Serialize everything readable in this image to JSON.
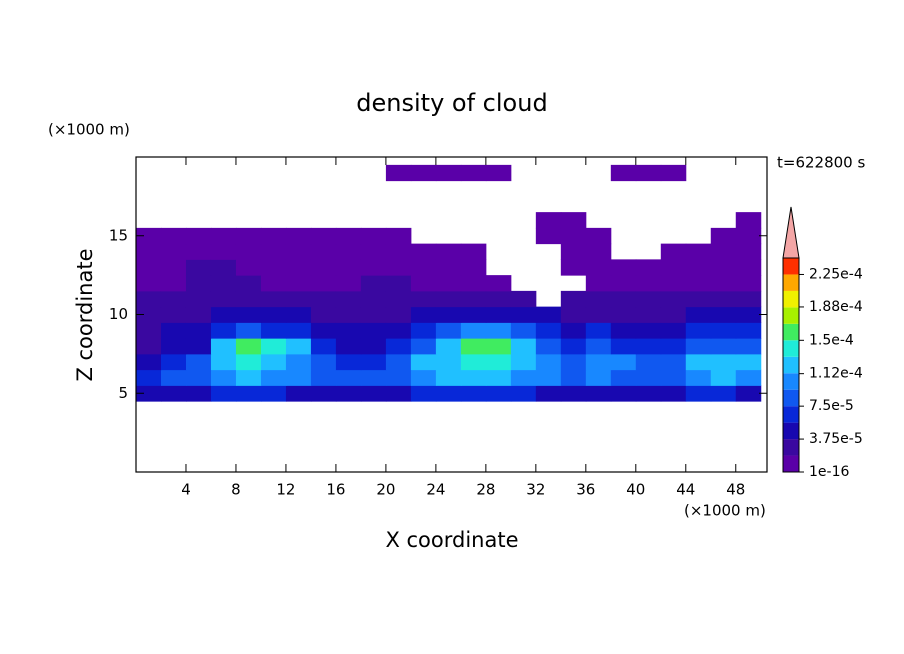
{
  "chart_data": {
    "type": "contour",
    "title": "density of cloud",
    "x_label": "X coordinate",
    "y_label": "Z coordinate",
    "x_unit": "(×1000 m)",
    "y_unit": "(×1000 m)",
    "time_label": "t=622800 s",
    "xlim": [
      0,
      50.5
    ],
    "ylim": [
      0,
      20
    ],
    "xticks": [
      4,
      8,
      12,
      16,
      20,
      24,
      28,
      32,
      36,
      40,
      44,
      48
    ],
    "yticks": [
      5,
      10,
      15
    ],
    "x": [
      1,
      3,
      5,
      7,
      9,
      11,
      13,
      15,
      17,
      19,
      21,
      23,
      25,
      27,
      29,
      31,
      33,
      35,
      37,
      39,
      41,
      43,
      45,
      47,
      49
    ],
    "y": [
      5,
      6,
      7,
      8,
      9,
      10,
      11,
      12,
      13,
      14,
      15,
      16,
      17,
      18,
      19
    ],
    "z": [
      [
        4e-05,
        5e-05,
        5e-05,
        6e-05,
        6e-05,
        6e-05,
        5e-05,
        5e-05,
        5e-05,
        5e-05,
        5e-05,
        6e-05,
        6e-05,
        6e-05,
        6e-05,
        6e-05,
        5e-05,
        5e-05,
        5e-05,
        5e-05,
        5e-05,
        5e-05,
        6e-05,
        6e-05,
        5e-05
      ],
      [
        7e-05,
        8e-05,
        9e-05,
        0.00011,
        0.000115,
        0.00011,
        0.0001,
        9e-05,
        8e-05,
        8e-05,
        9e-05,
        0.00011,
        0.000115,
        0.00012,
        0.000115,
        0.00011,
        0.0001,
        9e-05,
        0.0001,
        9e-05,
        8e-05,
        9e-05,
        0.00011,
        0.000115,
        0.00011
      ],
      [
        5e-05,
        6e-05,
        8e-05,
        0.00013,
        0.000135,
        0.00013,
        0.00011,
        9e-05,
        7e-05,
        7e-05,
        8e-05,
        0.00012,
        0.00013,
        0.00014,
        0.00014,
        0.00013,
        0.0001,
        9e-05,
        0.00011,
        0.0001,
        8e-05,
        9e-05,
        0.00012,
        0.00013,
        0.00012
      ],
      [
        3e-05,
        4e-05,
        5e-05,
        0.00012,
        0.000155,
        0.00015,
        0.00012,
        7e-05,
        5e-05,
        5e-05,
        6e-05,
        9e-05,
        0.00012,
        0.000155,
        0.00016,
        0.00013,
        8e-05,
        6e-05,
        8e-05,
        7e-05,
        6e-05,
        6e-05,
        8e-05,
        9e-05,
        8e-05
      ],
      [
        3e-05,
        4e-05,
        4e-05,
        6e-05,
        8e-05,
        7e-05,
        6e-05,
        5e-05,
        4e-05,
        4e-05,
        5e-05,
        6e-05,
        8e-05,
        0.0001,
        0.00011,
        8e-05,
        6e-05,
        5e-05,
        6e-05,
        5e-05,
        4e-05,
        5e-05,
        6e-05,
        6e-05,
        6e-05
      ],
      [
        2.5e-05,
        3e-05,
        3e-05,
        4e-05,
        4e-05,
        4e-05,
        4e-05,
        3e-05,
        3e-05,
        3e-05,
        3e-05,
        4e-05,
        5e-05,
        5e-05,
        5e-05,
        4e-05,
        4e-05,
        3e-05,
        3e-05,
        3e-05,
        3e-05,
        3e-05,
        4e-05,
        4e-05,
        4e-05
      ],
      [
        2e-05,
        2e-05,
        2e-05,
        2.5e-05,
        3e-05,
        3e-05,
        2.5e-05,
        2e-05,
        2.5e-05,
        2.5e-05,
        2.5e-05,
        2.5e-05,
        2.5e-05,
        2e-05,
        2e-05,
        2e-05,
        null,
        2e-05,
        2e-05,
        2e-05,
        2e-05,
        2e-05,
        2e-05,
        2e-05,
        2e-05
      ],
      [
        1.5e-05,
        1.5e-05,
        2e-05,
        2e-05,
        2e-05,
        1.5e-05,
        1.5e-05,
        1.5e-05,
        1.5e-05,
        2e-05,
        2e-05,
        1.5e-05,
        1.5e-05,
        1e-05,
        1e-05,
        null,
        null,
        null,
        1e-05,
        5e-06,
        5e-06,
        5e-06,
        1e-05,
        1e-05,
        1e-05
      ],
      [
        1.5e-05,
        1.5e-05,
        2e-05,
        2e-05,
        1.5e-05,
        1e-05,
        1e-05,
        1e-05,
        5e-06,
        5e-06,
        5e-06,
        5e-06,
        5e-06,
        5e-06,
        null,
        null,
        null,
        5e-06,
        5e-06,
        5e-06,
        5e-06,
        5e-06,
        5e-06,
        5e-06,
        5e-06
      ],
      [
        1e-05,
        1e-05,
        1e-05,
        1e-05,
        1e-05,
        5e-06,
        5e-06,
        5e-06,
        5e-06,
        5e-06,
        5e-06,
        5e-06,
        5e-06,
        5e-06,
        null,
        null,
        null,
        5e-06,
        5e-06,
        null,
        null,
        5e-06,
        5e-06,
        5e-06,
        5e-06
      ],
      [
        5e-06,
        5e-06,
        5e-06,
        5e-06,
        5e-06,
        5e-06,
        5e-06,
        5e-06,
        5e-06,
        5e-06,
        5e-06,
        null,
        null,
        null,
        null,
        null,
        5e-06,
        5e-06,
        5e-06,
        null,
        null,
        null,
        null,
        5e-06,
        5e-06
      ],
      [
        null,
        null,
        null,
        null,
        null,
        null,
        null,
        null,
        null,
        null,
        null,
        null,
        null,
        null,
        null,
        null,
        5e-06,
        5e-06,
        null,
        null,
        null,
        null,
        null,
        null,
        5e-06
      ],
      [
        null,
        null,
        null,
        null,
        null,
        null,
        null,
        null,
        null,
        null,
        null,
        null,
        null,
        null,
        null,
        null,
        null,
        null,
        null,
        null,
        null,
        null,
        null,
        null,
        null
      ],
      [
        null,
        null,
        null,
        null,
        null,
        null,
        null,
        null,
        null,
        null,
        null,
        null,
        null,
        null,
        null,
        null,
        null,
        null,
        null,
        null,
        null,
        null,
        null,
        null,
        null
      ],
      [
        null,
        null,
        null,
        null,
        null,
        null,
        null,
        null,
        null,
        null,
        5e-06,
        5e-06,
        5e-06,
        5e-06,
        5e-06,
        null,
        null,
        null,
        null,
        5e-06,
        5e-06,
        5e-06,
        null,
        null,
        null
      ]
    ],
    "colorbar": {
      "lim": [
        1e-16,
        0.00024375
      ],
      "colors": [
        "#5a00a8",
        "#3a08a0",
        "#1808b0",
        "#0828d8",
        "#1058f0",
        "#1888ff",
        "#20c0ff",
        "#20ecd8",
        "#40ec60",
        "#a8f000",
        "#f0f000",
        "#ffa800",
        "#ff3000"
      ],
      "ticks": [
        1e-16,
        {
          "value": 3.75e-05,
          "label": "3.75e-5"
        },
        {
          "value": 7.5e-05,
          "label": "7.5e-5"
        },
        {
          "value": 0.000112,
          "label": "1.12e-4"
        },
        {
          "value": 0.00015,
          "label": "1.5e-4"
        },
        {
          "value": 0.000188,
          "label": "1.88e-4"
        },
        {
          "value": 0.000225,
          "label": "2.25e-4"
        }
      ]
    }
  }
}
